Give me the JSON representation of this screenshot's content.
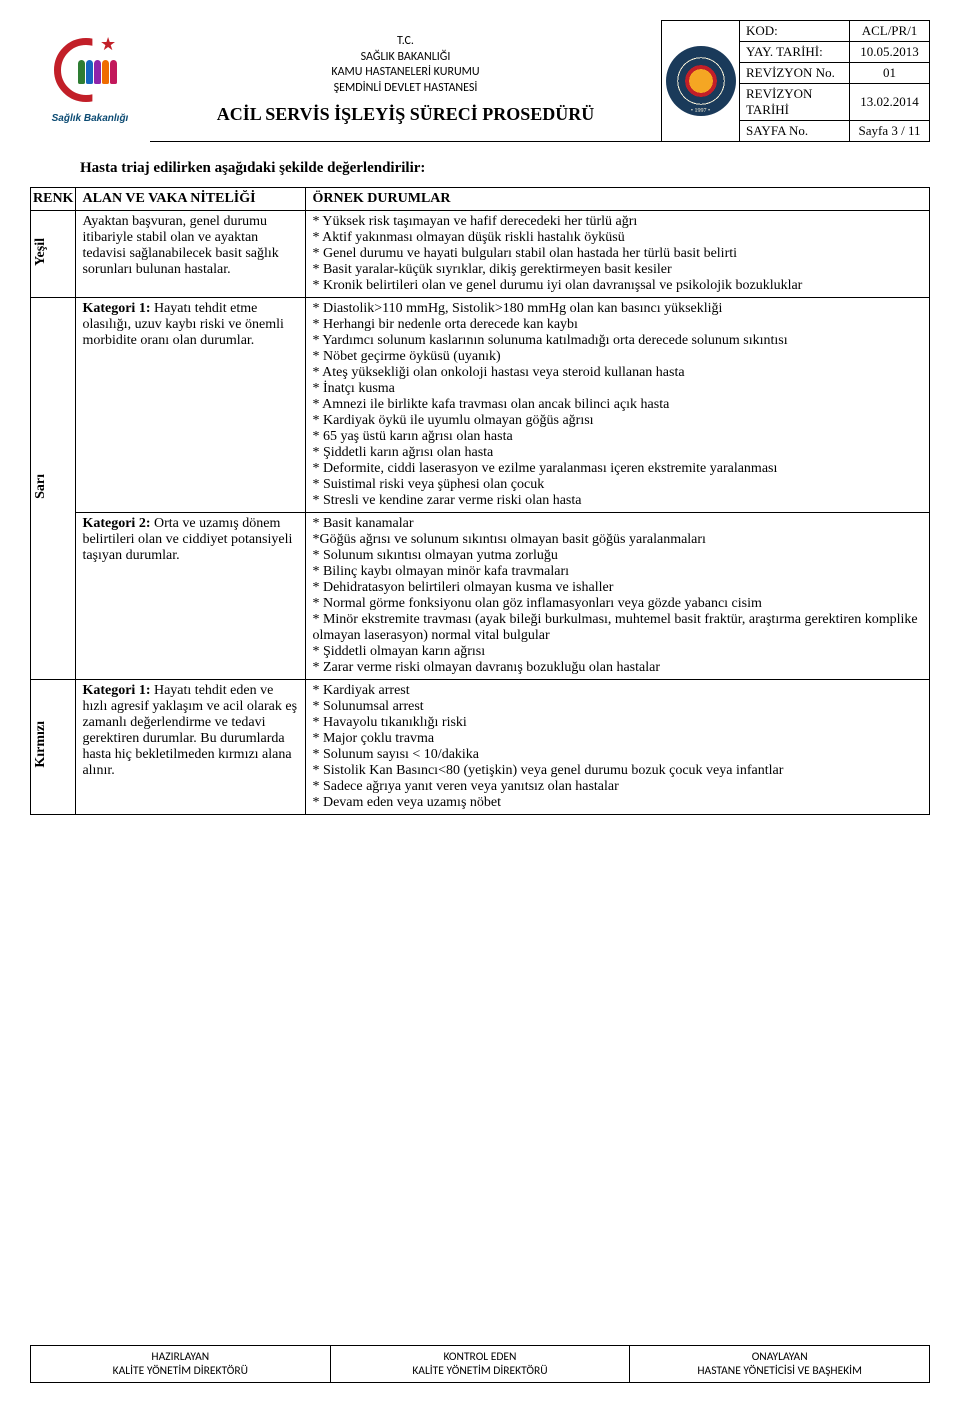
{
  "header": {
    "org_lines": [
      "T.C.",
      "SAĞLIK BAKANLIĞI",
      "KAMU HASTANELERİ KURUMU",
      "ŞEMDİNLİ DEVLET HASTANESİ"
    ],
    "title": "ACİL SERVİS İŞLEYİŞ SÜRECİ PROSEDÜRÜ",
    "logo_text": "Sağlık Bakanlığı",
    "meta": [
      {
        "label": "KOD:",
        "value": "ACL/PR/1"
      },
      {
        "label": "YAY. TARİHİ:",
        "value": "10.05.2013"
      },
      {
        "label": "REVİZYON No.",
        "value": "01"
      },
      {
        "label": "REVİZYON TARİHİ",
        "value": "13.02.2014"
      },
      {
        "label": "SAYFA No.",
        "value": "Sayfa 3 / 11"
      }
    ]
  },
  "intro": "Hasta triaj edilirken aşağıdaki şekilde değerlendirilir:",
  "table": {
    "headers": {
      "renk": "RENK",
      "nitelik": "ALAN VE VAKA NİTELİĞİ",
      "ornek": "ÖRNEK DURUMLAR"
    },
    "rows": [
      {
        "renk": "Yeşil",
        "nitelik_html": "Ayaktan başvuran, genel durumu itibariyle stabil olan ve ayaktan tedavisi sağlanabilecek basit sağlık sorunları bulunan hastalar.",
        "ornek_html": "* Yüksek risk taşımayan ve hafif derecedeki her türlü ağrı\n* Aktif yakınması olmayan düşük riskli hastalık öyküsü\n* Genel durumu ve hayati bulguları stabil olan hastada her türlü basit belirti\n * Basit yaralar-küçük sıyrıklar, dikiş gerektirmeyen basit kesiler\n * Kronik belirtileri olan ve genel durumu iyi olan davranışsal ve psikolojik bozukluklar"
      },
      {
        "renk": "Sarı",
        "sub": [
          {
            "nitelik_label": "Kategori 1:",
            "nitelik_rest": " Hayatı tehdit etme olasılığı, uzuv kaybı riski ve önemli morbidite oranı olan durumlar.",
            "ornek_html": "* Diastolik>110 mmHg, Sistolik>180 mmHg olan kan basıncı yüksekliği\n * Herhangi bir nedenle orta derecede kan kaybı\n * Yardımcı solunum kaslarının solunuma katılmadığı orta derecede solunum sıkıntısı\n * Nöbet geçirme öyküsü (uyanık)\n * Ateş yüksekliği olan onkoloji hastası veya steroid kullanan hasta\n * İnatçı kusma\n * Amnezi ile birlikte kafa travması olan ancak bilinci açık hasta\n * Kardiyak öykü ile uyumlu olmayan göğüs ağrısı\n * 65 yaş üstü karın ağrısı olan hasta\n * Şiddetli karın ağrısı olan hasta\n * Deformite, ciddi laserasyon ve ezilme yaralanması içeren ekstremite yaralanması\n * Suistimal riski veya şüphesi olan çocuk\n * Stresli ve kendine zarar verme riski olan hasta"
          },
          {
            "nitelik_label": "Kategori 2:",
            "nitelik_rest": " Orta ve uzamış dönem belirtileri olan ve ciddiyet potansiyeli taşıyan durumlar.",
            "ornek_html": " * Basit kanamalar\n *Göğüs ağrısı ve solunum sıkıntısı olmayan basit göğüs yaralanmaları\n * Solunum sıkıntısı olmayan yutma zorluğu\n * Bilinç kaybı olmayan minör kafa travmaları\n * Dehidratasyon belirtileri olmayan kusma ve ishaller\n * Normal görme fonksiyonu olan göz inflamasyonları veya gözde yabancı cisim\n * Minör ekstremite travması (ayak bileği burkulması, muhtemel basit fraktür, araştırma gerektiren komplike olmayan laserasyon) normal vital bulgular\n * Şiddetli olmayan karın ağrısı\n * Zarar verme riski olmayan davranış bozukluğu olan hastalar"
          }
        ]
      },
      {
        "renk": "Kırmızı",
        "nitelik_label": "Kategori 1:",
        "nitelik_rest": " Hayatı tehdit eden ve hızlı agresif yaklaşım ve acil olarak eş zamanlı değerlendirme ve tedavi gerektiren durumlar. Bu durumlarda hasta hiç bekletilmeden kırmızı alana alınır.",
        "ornek_html": "* Kardiyak arrest\n * Solunumsal arrest\n * Havayolu tıkanıklığı riski\n * Major çoklu travma\n * Solunum sayısı < 10/dakika\n * Sistolik Kan Basıncı<80 (yetişkin) veya genel durumu bozuk çocuk veya infantlar\n * Sadece ağrıya yanıt veren veya yanıtsız olan hastalar\n * Devam eden veya uzamış nöbet"
      }
    ]
  },
  "footer": {
    "cols": [
      {
        "top": "HAZIRLAYAN",
        "bottom": "KALİTE YÖNETİM DİREKTÖRÜ"
      },
      {
        "top": "KONTROL EDEN",
        "bottom": "KALİTE YÖNETİM DİREKTÖRÜ"
      },
      {
        "top": "ONAYLAYAN",
        "bottom": "HASTANE YÖNETİCİSİ VE BAŞHEKİM"
      }
    ]
  },
  "colors": {
    "logo_red": "#c21f28",
    "logo_blue": "#0b4a72",
    "people": [
      "#2e7d32",
      "#1565c0",
      "#8e24aa",
      "#ef6c00",
      "#c2185b"
    ]
  }
}
